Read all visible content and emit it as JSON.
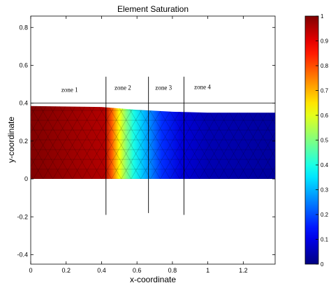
{
  "chart_data": {
    "type": "heatmap",
    "title": "Element Saturation",
    "xlabel": "x-coordinate",
    "ylabel": "y-coordinate",
    "xlim": [
      0,
      1.38
    ],
    "ylim": [
      -0.45,
      0.86
    ],
    "xticks": [
      0,
      0.2,
      0.4,
      0.6,
      0.8,
      1,
      1.2
    ],
    "xtick_labels": [
      "0",
      "0.2",
      "0.4",
      "0.6",
      "0.8",
      "1",
      "1.2"
    ],
    "yticks": [
      -0.4,
      -0.2,
      0,
      0.2,
      0.4,
      0.6,
      0.8
    ],
    "ytick_labels": [
      "-0.4",
      "-0.2",
      "0",
      "0.2",
      "0.4",
      "0.6",
      "0.8"
    ],
    "colorbar": {
      "range": [
        0,
        1
      ],
      "ticks": [
        0,
        0.1,
        0.2,
        0.3,
        0.4,
        0.5,
        0.6,
        0.7,
        0.8,
        0.9,
        1
      ],
      "tick_labels": [
        "0",
        "0.1",
        "0.2",
        "0.3",
        "0.4",
        "0.5",
        "0.6",
        "0.7",
        "0.8",
        "0.9",
        "1"
      ],
      "colormap": "jet"
    },
    "domain_bottom_y": 0,
    "domain_top_y": [
      {
        "x": 0,
        "y": 0.385
      },
      {
        "x": 0.4,
        "y": 0.38
      },
      {
        "x": 0.6,
        "y": 0.365
      },
      {
        "x": 0.8,
        "y": 0.355
      },
      {
        "x": 1.0,
        "y": 0.35
      },
      {
        "x": 1.38,
        "y": 0.35
      }
    ],
    "saturation_profile": [
      {
        "x": 0,
        "s": 1.0
      },
      {
        "x": 0.42,
        "s": 0.95
      },
      {
        "x": 0.46,
        "s": 0.78
      },
      {
        "x": 0.5,
        "s": 0.62
      },
      {
        "x": 0.54,
        "s": 0.5
      },
      {
        "x": 0.58,
        "s": 0.4
      },
      {
        "x": 0.63,
        "s": 0.32
      },
      {
        "x": 0.68,
        "s": 0.25
      },
      {
        "x": 0.74,
        "s": 0.17
      },
      {
        "x": 0.85,
        "s": 0.09
      },
      {
        "x": 1.0,
        "s": 0.05
      },
      {
        "x": 1.38,
        "s": 0.03
      }
    ],
    "horizontal_line_y": 0.4,
    "zone_boundaries": [
      {
        "x": 0.425,
        "y_from": -0.19,
        "y_to": 0.54
      },
      {
        "x": 0.665,
        "y_from": -0.18,
        "y_to": 0.54
      },
      {
        "x": 0.865,
        "y_from": -0.19,
        "y_to": 0.54
      }
    ],
    "zone_labels": [
      {
        "text": "zone 1",
        "x": 0.22,
        "y": 0.46
      },
      {
        "text": "zone 2",
        "x": 0.52,
        "y": 0.47
      },
      {
        "text": "zone 3",
        "x": 0.75,
        "y": 0.47
      },
      {
        "text": "zone 4",
        "x": 0.97,
        "y": 0.475
      }
    ],
    "grid": false
  }
}
